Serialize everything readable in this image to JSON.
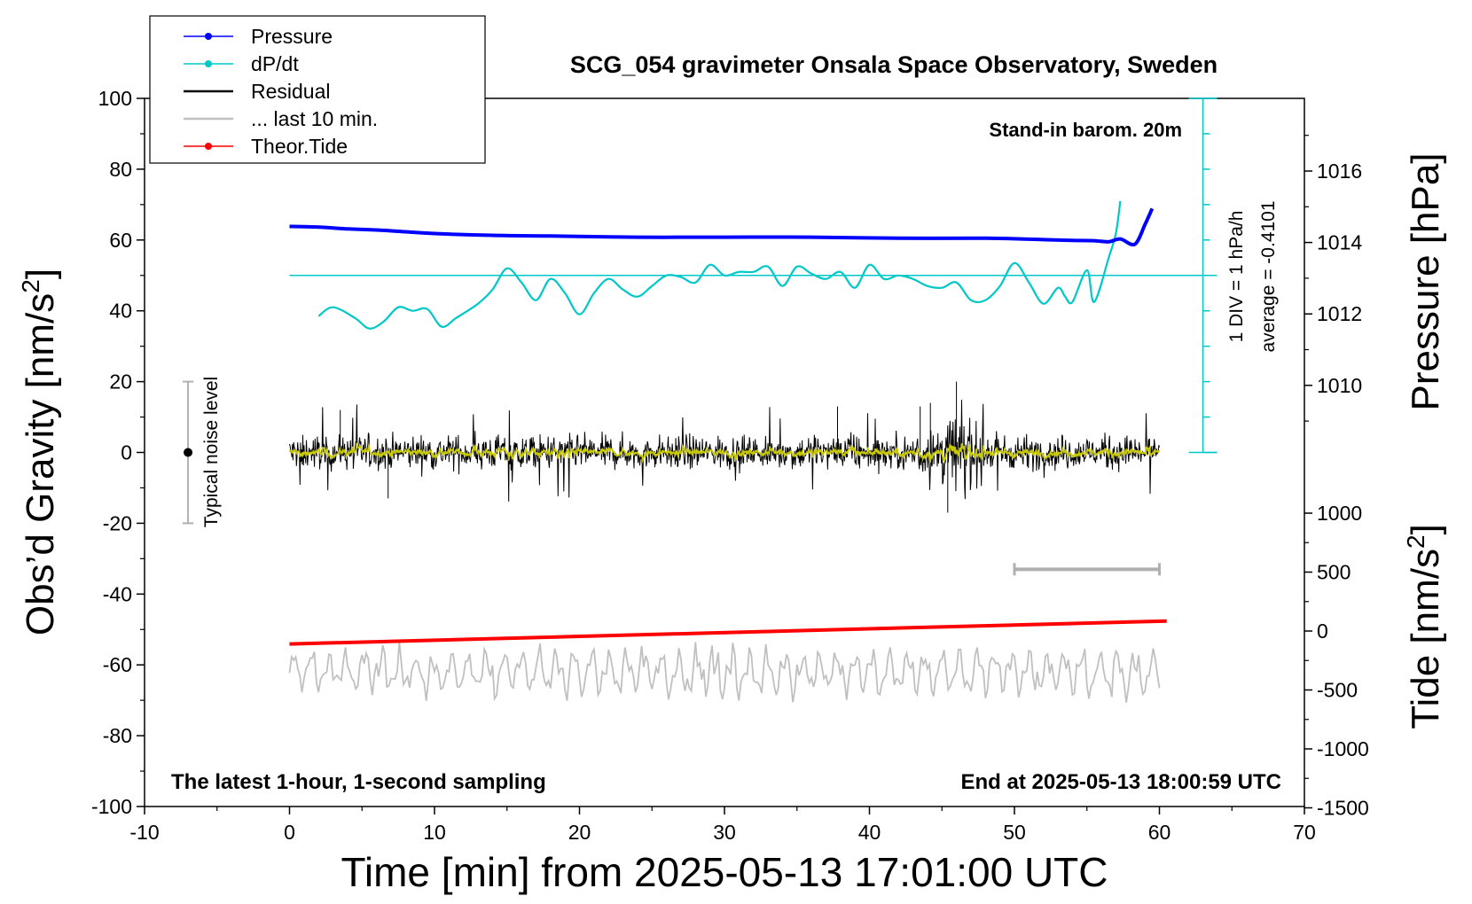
{
  "title": "SCG_054 gravimeter Onsala Space Observatory, Sweden",
  "annotations": {
    "barometer": "Stand-in barom. 20m",
    "window": "The latest 1-hour, 1-second sampling",
    "end_time": "End at 2025-05-13 18:00:59 UTC",
    "noise": "Typical noise level",
    "div": "1 DIV = 1 hPa/h",
    "average": "average = -0.4101"
  },
  "legend": {
    "items": [
      {
        "label": "Pressure",
        "color": "#0000ff",
        "marker": "dot"
      },
      {
        "label": "dP/dt",
        "color": "#00c8c8",
        "marker": "dot"
      },
      {
        "label": "Residual",
        "color": "#000000",
        "marker": "none"
      },
      {
        "label": "... last 10 min.",
        "color": "#c0c0c0",
        "marker": "none"
      },
      {
        "label": "Theor.Tide",
        "color": "#ff0000",
        "marker": "dot"
      }
    ]
  },
  "axes": {
    "x": {
      "label": "Time [min] from 2025-05-13 17:01:00 UTC",
      "range": [
        -10,
        70
      ],
      "ticks": [
        "-10",
        "0",
        "10",
        "20",
        "30",
        "40",
        "50",
        "60",
        "70"
      ]
    },
    "y_left": {
      "label_main": "Obs’d Gravity [nm/s",
      "label_sup": "2",
      "label_end": "]",
      "range": [
        -100,
        100
      ],
      "ticks": [
        "100",
        "80",
        "60",
        "40",
        "20",
        "0",
        "-20",
        "-40",
        "-60",
        "-80",
        "-100"
      ]
    },
    "y_pressure": {
      "label": "Pressure [hPa]",
      "range": [
        1008,
        1018
      ],
      "ticks": [
        "1016",
        "1014",
        "1012",
        "1010"
      ]
    },
    "y_tide": {
      "label_main": "Tide [nm/s",
      "label_sup": "2",
      "label_end": "]",
      "range": [
        -1500,
        1000
      ],
      "ticks": [
        "1000",
        "500",
        "0",
        "-500",
        "-1000",
        "-1500"
      ]
    }
  },
  "colors": {
    "pressure": "#0000ff",
    "dpdt": "#00c8c8",
    "residual": "#000000",
    "residual_smooth": "#c8c800",
    "last10": "#c0c0c0",
    "tide": "#ff0000",
    "noise_bar": "#b0b0b0"
  },
  "chart_data": {
    "type": "line",
    "title": "SCG_054 gravimeter Onsala Space Observatory, Sweden",
    "xlabel": "Time [min] from 2025-05-13 17:01:00 UTC",
    "ylabel": "Obs’d Gravity [nm/s2]",
    "xlim": [
      -10,
      70
    ],
    "ylim": [
      -100,
      100
    ],
    "legend_position": "top-left",
    "grid": false,
    "series": [
      {
        "name": "Pressure",
        "axis": "pressure_hPa",
        "x": [
          0,
          2,
          4,
          6,
          8,
          10,
          14,
          18,
          24,
          30,
          36,
          42,
          48,
          52,
          54,
          55.5,
          56.5,
          57.3,
          58.3,
          59,
          59.5
        ],
        "y": [
          1014.45,
          1014.43,
          1014.38,
          1014.35,
          1014.3,
          1014.25,
          1014.2,
          1014.18,
          1014.15,
          1014.15,
          1014.15,
          1014.12,
          1014.12,
          1014.08,
          1014.06,
          1014.05,
          1014.02,
          1014.1,
          1013.95,
          1014.5,
          1014.95
        ]
      },
      {
        "name": "dP/dt",
        "axis": "gravity",
        "reference_level": 50,
        "x": [
          2,
          3,
          4.5,
          5.5,
          6.5,
          7.5,
          8.5,
          9.5,
          10.5,
          11.5,
          13,
          14,
          15,
          16,
          17,
          18,
          19,
          20,
          21,
          22,
          23,
          24,
          25,
          26,
          27,
          28,
          29,
          30,
          31,
          32,
          33,
          34,
          35,
          36,
          37,
          38,
          39,
          40,
          41,
          42,
          43,
          44,
          45,
          46,
          47,
          48,
          49,
          50,
          51,
          52,
          53,
          53.5,
          54,
          55,
          55.5,
          56.5,
          57,
          57.3
        ],
        "y": [
          38.5,
          41,
          38,
          35,
          37,
          41,
          40,
          40.5,
          35.5,
          38,
          42,
          46,
          52,
          48,
          43,
          49,
          45,
          39,
          45,
          49,
          46,
          44,
          47,
          50,
          49.5,
          48,
          53,
          50,
          51,
          51,
          52.5,
          47,
          52.5,
          50.5,
          49,
          51,
          46.5,
          53,
          49,
          50,
          49,
          47,
          46.5,
          48,
          43,
          43,
          47,
          53.5,
          48,
          42,
          46.5,
          44,
          42.5,
          51.5,
          42.5,
          55,
          62,
          71
        ]
      },
      {
        "name": "Residual",
        "axis": "gravity",
        "x_range": [
          0,
          60
        ],
        "sampling": "1 s",
        "envelope": [
          -17,
          21
        ]
      },
      {
        "name": "... last 10 min.",
        "axis": "gravity",
        "x_range": [
          0,
          60
        ],
        "envelope": [
          -73,
          -51
        ]
      },
      {
        "name": "Theor.Tide",
        "axis": "tide_nm_s2",
        "x": [
          0,
          60.5
        ],
        "y": [
          -110,
          85
        ]
      }
    ]
  }
}
